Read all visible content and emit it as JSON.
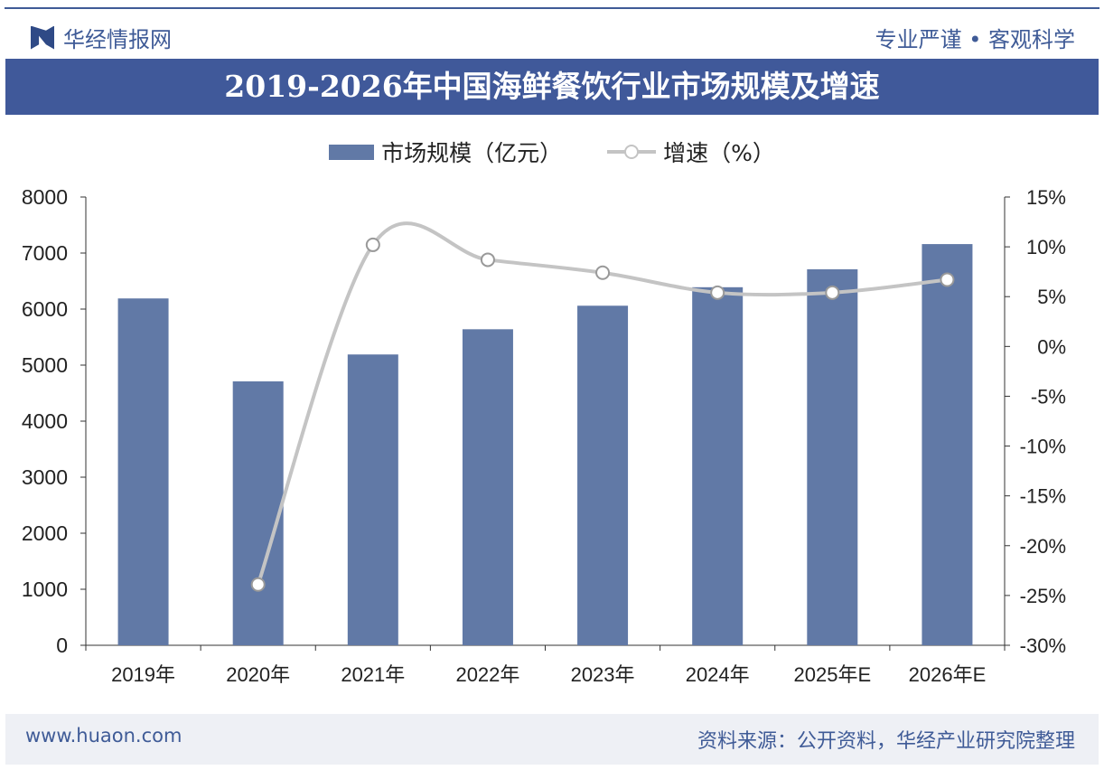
{
  "header": {
    "brand": "华经情报网",
    "motto": "专业严谨 • 客观科学"
  },
  "footer": {
    "url": "www.huaon.com",
    "source": "资料来源：公开资料，华经产业研究院整理"
  },
  "chart_data": {
    "type": "bar",
    "title": "2019-2026年中国海鲜餐饮行业市场规模及增速",
    "categories": [
      "2019年",
      "2020年",
      "2021年",
      "2022年",
      "2023年",
      "2024年",
      "2025年E",
      "2026年E"
    ],
    "series": [
      {
        "name": "市场规模（亿元）",
        "type": "bar",
        "axis": "left",
        "color": "#6179a6",
        "values": [
          6190,
          4710,
          5190,
          5640,
          6060,
          6390,
          6710,
          7160
        ]
      },
      {
        "name": "增速（%）",
        "type": "line",
        "axis": "right",
        "color": "#c4c4c4",
        "values": [
          null,
          -23.9,
          10.2,
          8.7,
          7.4,
          5.4,
          5.4,
          6.7
        ]
      }
    ],
    "left_axis": {
      "ylim": [
        0,
        8000
      ],
      "ticks": [
        "0",
        "1000",
        "2000",
        "3000",
        "4000",
        "5000",
        "6000",
        "7000",
        "8000"
      ]
    },
    "right_axis": {
      "ylim": [
        -30,
        15
      ],
      "ticks": [
        "-30%",
        "-25%",
        "-20%",
        "-15%",
        "-10%",
        "-5%",
        "0%",
        "5%",
        "10%",
        "15%"
      ]
    },
    "grid": false,
    "legend": "top"
  }
}
